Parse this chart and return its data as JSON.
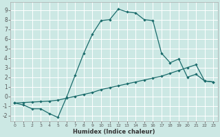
{
  "xlabel": "Humidex (Indice chaleur)",
  "background_color": "#cce8e4",
  "grid_color": "#ffffff",
  "line_color": "#1a6b6b",
  "xlim": [
    -0.5,
    23.5
  ],
  "ylim": [
    -2.6,
    9.8
  ],
  "x_ticks": [
    0,
    1,
    2,
    3,
    4,
    5,
    6,
    7,
    8,
    9,
    10,
    11,
    12,
    13,
    14,
    15,
    16,
    17,
    18,
    19,
    20,
    21,
    22,
    23
  ],
  "y_ticks": [
    -2,
    -1,
    0,
    1,
    2,
    3,
    4,
    5,
    6,
    7,
    8,
    9
  ],
  "curve1_x": [
    0,
    1,
    2,
    3,
    4,
    5,
    6,
    7,
    8,
    9,
    10,
    11,
    12,
    13,
    14,
    15,
    16,
    17,
    18,
    19,
    20,
    21,
    22,
    23
  ],
  "curve1_y": [
    -0.7,
    -0.9,
    -1.3,
    -1.3,
    -1.8,
    -2.2,
    -0.1,
    2.2,
    4.5,
    6.5,
    7.9,
    8.0,
    9.1,
    8.8,
    8.7,
    8.0,
    7.9,
    4.5,
    3.5,
    3.9,
    2.0,
    2.3,
    1.6,
    1.5
  ],
  "curve2_x": [
    0,
    1,
    2,
    3,
    4,
    5,
    6,
    7,
    8,
    9,
    10,
    11,
    12,
    13,
    14,
    15,
    16,
    17,
    18,
    19,
    20,
    21,
    22,
    23
  ],
  "curve2_y": [
    -0.7,
    -0.65,
    -0.6,
    -0.55,
    -0.5,
    -0.4,
    -0.2,
    0.0,
    0.2,
    0.4,
    0.7,
    0.9,
    1.1,
    1.3,
    1.5,
    1.7,
    1.9,
    2.1,
    2.4,
    2.7,
    3.0,
    3.3,
    1.6,
    1.5
  ],
  "lw": 0.9,
  "ms": 2.2
}
